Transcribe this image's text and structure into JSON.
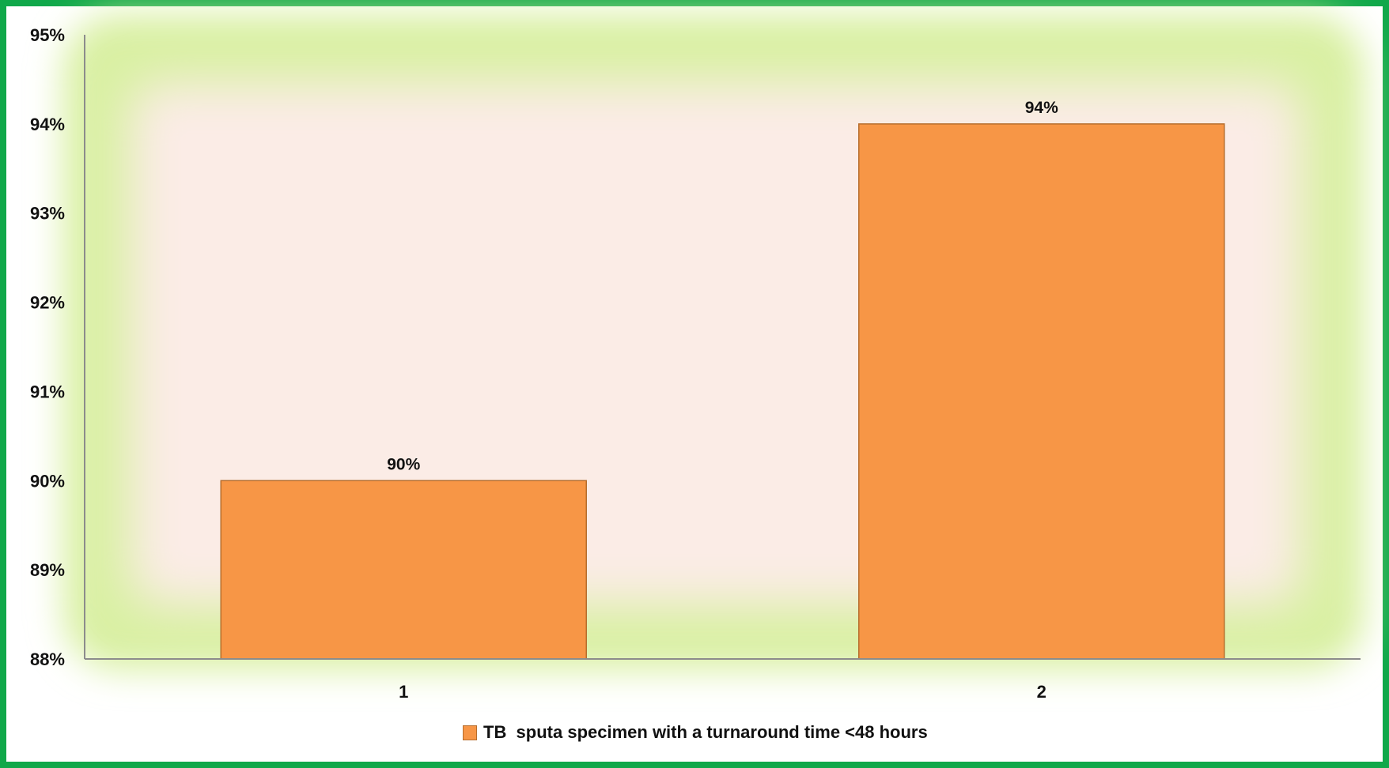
{
  "chart_data": {
    "type": "bar",
    "categories": [
      "1",
      "2"
    ],
    "series": [
      {
        "name": "TB  sputa specimen with a turnaround time <48 hours",
        "values": [
          90,
          94
        ],
        "data_labels": [
          "90%",
          "94%"
        ],
        "color": "#f79646"
      }
    ],
    "title": "",
    "xlabel": "",
    "ylabel": "",
    "ylim": [
      88,
      95
    ],
    "y_ticks": [
      88,
      89,
      90,
      91,
      92,
      93,
      94,
      95
    ],
    "y_tick_labels": [
      "88%",
      "89%",
      "90%",
      "91%",
      "92%",
      "93%",
      "94%",
      "95%"
    ],
    "grid": false,
    "legend_position": "bottom",
    "colors": {
      "frame": "#10a84a",
      "plot_glow": "#d9f0a3",
      "plot_inner": "#fbece6",
      "bar_fill": "#f79646",
      "bar_stroke": "#b66d2c",
      "axis": "#8c8c8c"
    }
  }
}
